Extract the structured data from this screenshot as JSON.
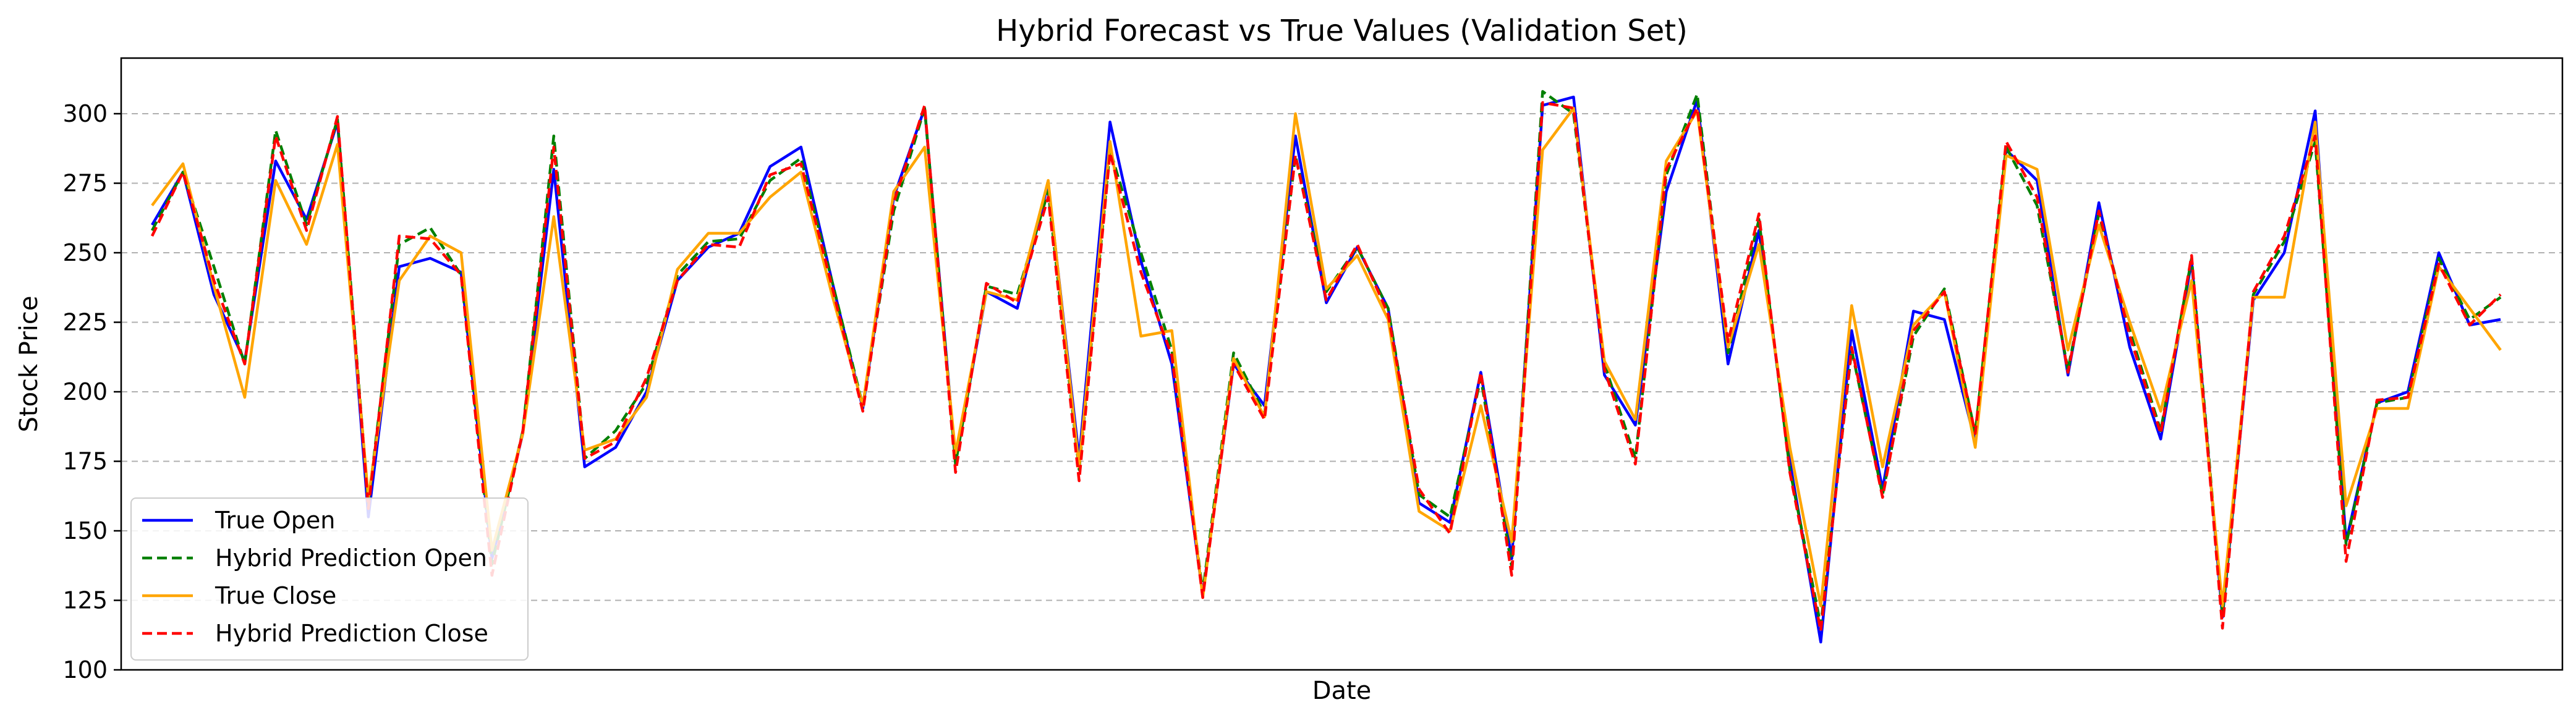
{
  "chart_data": {
    "type": "line",
    "title": "Hybrid Forecast vs True Values (Validation Set)",
    "xlabel": "Date",
    "ylabel": "Stock Price",
    "ylim": [
      100,
      320
    ],
    "yticks": [
      100,
      125,
      150,
      175,
      200,
      225,
      250,
      275,
      300
    ],
    "grid": "y-dashed",
    "legend_position": "lower-left",
    "x": [
      1,
      2,
      3,
      4,
      5,
      6,
      7,
      8,
      9,
      10,
      11,
      12,
      13,
      14,
      15,
      16,
      17,
      18,
      19,
      20,
      21,
      22,
      23,
      24,
      25,
      26,
      27,
      28,
      29,
      30,
      31,
      32,
      33,
      34,
      35,
      36,
      37,
      38,
      39,
      40,
      41,
      42,
      43,
      44,
      45,
      46,
      47,
      48,
      49,
      50,
      51,
      52,
      53,
      54,
      55,
      56,
      57,
      58,
      59,
      60,
      61,
      62,
      63,
      64,
      65,
      66,
      67,
      68,
      69,
      70,
      71,
      72,
      73,
      74,
      75,
      76,
      77,
      78
    ],
    "series": [
      {
        "name": "True Open",
        "color": "#0000ff",
        "dash": "solid",
        "values": [
          260,
          279,
          235,
          211,
          283,
          262,
          297,
          155,
          245,
          248,
          243,
          140,
          185,
          280,
          173,
          180,
          200,
          240,
          252,
          257,
          281,
          288,
          240,
          194,
          270,
          302,
          175,
          236,
          230,
          275,
          176,
          297,
          247,
          210,
          127,
          210,
          195,
          292,
          232,
          252,
          230,
          160,
          153,
          207,
          140,
          303,
          306,
          206,
          188,
          272,
          305,
          210,
          258,
          175,
          110,
          222,
          165,
          229,
          226,
          182,
          287,
          276,
          206,
          268,
          216,
          183,
          247,
          119,
          233,
          250,
          301,
          146,
          196,
          200,
          250,
          224,
          226,
          null
        ]
      },
      {
        "name": "Hybrid Prediction Open",
        "color": "#008000",
        "dash": "dashed",
        "values": [
          258,
          279,
          245,
          210,
          294,
          260,
          298,
          160,
          253,
          259,
          242,
          138,
          186,
          292,
          176,
          186,
          203,
          242,
          254,
          255,
          276,
          284,
          240,
          195,
          265,
          302,
          174,
          238,
          235,
          272,
          172,
          287,
          250,
          215,
          128,
          214,
          192,
          285,
          236,
          252,
          230,
          163,
          155,
          205,
          137,
          308,
          300,
          210,
          176,
          278,
          307,
          214,
          262,
          172,
          116,
          215,
          163,
          220,
          237,
          185,
          288,
          267,
          208,
          264,
          222,
          186,
          248,
          120,
          235,
          254,
          290,
          145,
          196,
          198,
          248,
          226,
          234,
          null
        ]
      },
      {
        "name": "True Close",
        "color": "#ffa500",
        "dash": "solid",
        "values": [
          267,
          282,
          238,
          198,
          276,
          253,
          289,
          162,
          240,
          256,
          250,
          143,
          185,
          263,
          179,
          183,
          198,
          244,
          257,
          257,
          270,
          279,
          235,
          195,
          272,
          288,
          178,
          236,
          233,
          276,
          173,
          290,
          220,
          222,
          126,
          212,
          191,
          300,
          237,
          249,
          226,
          157,
          150,
          195,
          146,
          287,
          302,
          211,
          190,
          283,
          301,
          216,
          253,
          180,
          123,
          231,
          173,
          224,
          236,
          180,
          285,
          280,
          215,
          260,
          225,
          193,
          240,
          123,
          234,
          234,
          297,
          159,
          194,
          194,
          245,
          230,
          215,
          null
        ]
      },
      {
        "name": "Hybrid Prediction Close",
        "color": "#ff0000",
        "dash": "dashed",
        "values": [
          256,
          279,
          240,
          210,
          292,
          258,
          299,
          158,
          256,
          255,
          242,
          134,
          186,
          288,
          176,
          182,
          205,
          240,
          253,
          252,
          278,
          282,
          238,
          193,
          268,
          303,
          171,
          239,
          232,
          270,
          168,
          286,
          243,
          213,
          126,
          210,
          190,
          285,
          233,
          253,
          228,
          165,
          149,
          207,
          134,
          304,
          302,
          208,
          174,
          280,
          302,
          218,
          264,
          171,
          114,
          216,
          162,
          222,
          236,
          185,
          290,
          270,
          207,
          265,
          220,
          185,
          249,
          115,
          236,
          256,
          292,
          139,
          197,
          198,
          246,
          224,
          235,
          null
        ]
      }
    ]
  }
}
